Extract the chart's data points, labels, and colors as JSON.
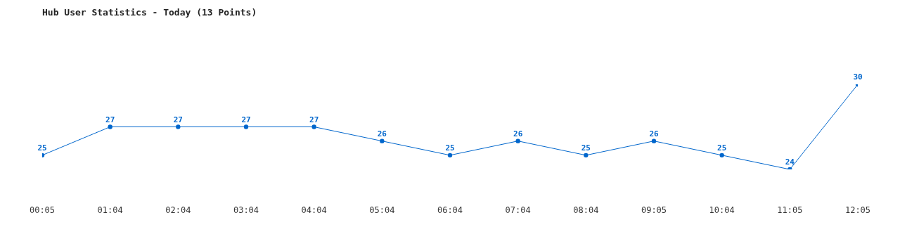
{
  "chart_data": {
    "type": "line",
    "title": "Hub User Statistics - Today (13 Points)",
    "categories": [
      "00:05",
      "01:04",
      "02:04",
      "03:04",
      "04:04",
      "05:04",
      "06:04",
      "07:04",
      "08:04",
      "09:05",
      "10:04",
      "11:05",
      "12:05"
    ],
    "series": [
      {
        "color": "#0066cc",
        "values": [
          25,
          27,
          27,
          27,
          27,
          26,
          25,
          26,
          25,
          26,
          25,
          24,
          30
        ]
      }
    ],
    "data_labels": true,
    "marker": "circle",
    "line_style": "solid"
  }
}
